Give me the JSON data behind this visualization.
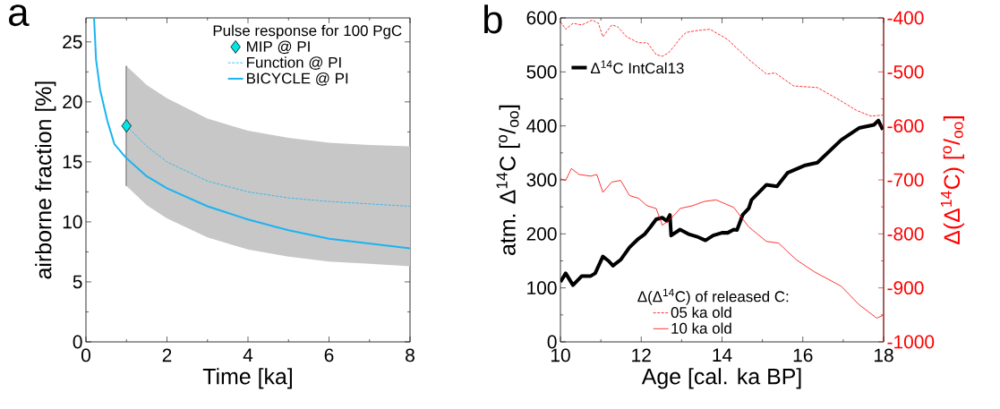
{
  "chart_data": [
    {
      "type": "line",
      "xlabel": "Time [ka]",
      "ylabel": "airborne fraction [%]",
      "legend_title": "Pulse response for 100 PgC",
      "annotations": [
        "a"
      ],
      "xlim": [
        0,
        8
      ],
      "ylim": [
        0,
        27
      ],
      "xticks": [
        0,
        2,
        4,
        6,
        8
      ],
      "yticks": [
        0,
        5,
        10,
        15,
        20,
        25
      ],
      "legend": "top right",
      "series": [
        {
          "name": "MIP @ PI",
          "type": "scatter",
          "marker": "diamond",
          "color": "#00e5e5",
          "x": [
            1
          ],
          "values": [
            18
          ],
          "errors": [
            [
              13,
              23
            ]
          ]
        },
        {
          "name": "Function @ PI",
          "type": "line",
          "line_style": "dashed",
          "color": "#1ab4f0",
          "x": [
            1,
            1.5,
            2,
            3,
            4,
            5,
            6,
            7,
            8
          ],
          "values": [
            18,
            16.3,
            15.0,
            13.4,
            12.5,
            12.0,
            11.7,
            11.5,
            11.3
          ],
          "lower": [
            13,
            11.4,
            10.3,
            8.7,
            7.7,
            7.1,
            6.7,
            6.5,
            6.3
          ],
          "upper": [
            23,
            21.4,
            20.3,
            18.6,
            17.6,
            17.0,
            16.6,
            16.4,
            16.3
          ]
        },
        {
          "name": "BICYCLE @ PI",
          "type": "line",
          "line_style": "solid",
          "color": "#1ab4f0",
          "x": [
            0.2,
            0.25,
            0.35,
            0.53,
            0.7,
            1,
            1.5,
            2,
            3,
            4,
            5,
            6,
            7,
            8
          ],
          "values": [
            27,
            23.5,
            21,
            18.4,
            16.5,
            15.3,
            13.8,
            12.8,
            11.3,
            10.2,
            9.3,
            8.6,
            8.2,
            7.8
          ]
        }
      ]
    },
    {
      "type": "line",
      "xlabel": "Age [cal. ka BP]",
      "ylabel": "atm. Δ$^{14}$C [$^{o}$/$_{oo}$]",
      "y2label": "Δ(Δ$^{14}$C) [$^{o}$/$_{oo}$]",
      "annotations": [
        "b",
        "Δ(Δ$^{14}$C) of released C:"
      ],
      "xlim": [
        10,
        18
      ],
      "ylim": [
        0,
        600
      ],
      "y2lim": [
        -1000,
        -400
      ],
      "xticks": [
        10,
        12,
        14,
        16,
        18
      ],
      "yticks": [
        0,
        100,
        200,
        300,
        400,
        500,
        600
      ],
      "y2ticks": [
        -1000,
        -900,
        -800,
        -700,
        -600,
        -500,
        -400
      ],
      "legend": "left",
      "series": [
        {
          "name": "Δ$^{14}$C IntCal13",
          "type": "line",
          "line_style": "solid",
          "color": "#000000",
          "x": [
            10,
            10.13,
            10.31,
            10.53,
            10.75,
            10.86,
            11.05,
            11.19,
            11.3,
            11.49,
            11.71,
            11.93,
            12.08,
            12.23,
            12.37,
            12.52,
            12.63,
            12.71,
            12.74,
            12.96,
            13.19,
            13.41,
            13.59,
            13.78,
            14,
            14.14,
            14.29,
            14.37,
            14.51,
            14.66,
            14.73,
            15.1,
            15.36,
            15.62,
            16.06,
            16.36,
            16.95,
            17.39,
            17.76,
            17.87,
            17.98
          ],
          "values": [
            111,
            127,
            105,
            122,
            122,
            127,
            158,
            150,
            141,
            152,
            175,
            191,
            199,
            213,
            227,
            230,
            224,
            235,
            197,
            208,
            199,
            194,
            188,
            197,
            202,
            202,
            208,
            207,
            235,
            247,
            263,
            291,
            288,
            313,
            327,
            332,
            374,
            396,
            402,
            410,
            393
          ]
        },
        {
          "name": "05 ka old",
          "axis": "y2",
          "type": "line",
          "line_style": "dashed",
          "color": "#ff0000",
          "x": [
            10,
            10.13,
            10.31,
            10.53,
            10.79,
            10.94,
            11.05,
            11.27,
            11.41,
            11.64,
            11.93,
            12.15,
            12.37,
            12.52,
            12.67,
            12.82,
            12.96,
            13.11,
            13.33,
            13.7,
            14.14,
            14.66,
            15.1,
            15.32,
            15.77,
            16.36,
            16.95,
            17.32,
            17.69,
            17.98
          ],
          "values": [
            -407,
            -421,
            -410,
            -413,
            -404,
            -410,
            -435,
            -413,
            -416,
            -435,
            -446,
            -446,
            -468,
            -471,
            -465,
            -452,
            -438,
            -427,
            -424,
            -421,
            -440,
            -477,
            -504,
            -502,
            -526,
            -529,
            -554,
            -571,
            -582,
            -580
          ]
        },
        {
          "name": "10 ka old",
          "axis": "y2",
          "type": "line",
          "line_style": "solid",
          "color": "#ff0000",
          "x": [
            10,
            10.13,
            10.27,
            10.46,
            10.75,
            10.9,
            11.05,
            11.27,
            11.49,
            11.71,
            11.93,
            12.15,
            12.37,
            12.52,
            12.67,
            12.82,
            12.96,
            13.26,
            13.56,
            13.85,
            14.29,
            14.66,
            15.1,
            15.4,
            15.84,
            16.28,
            16.95,
            17.39,
            17.83,
            17.98
          ],
          "values": [
            -698,
            -701,
            -679,
            -690,
            -693,
            -690,
            -723,
            -704,
            -701,
            -729,
            -734,
            -748,
            -753,
            -784,
            -776,
            -765,
            -753,
            -748,
            -740,
            -737,
            -751,
            -787,
            -814,
            -817,
            -848,
            -870,
            -897,
            -931,
            -956,
            -951
          ]
        }
      ]
    }
  ]
}
